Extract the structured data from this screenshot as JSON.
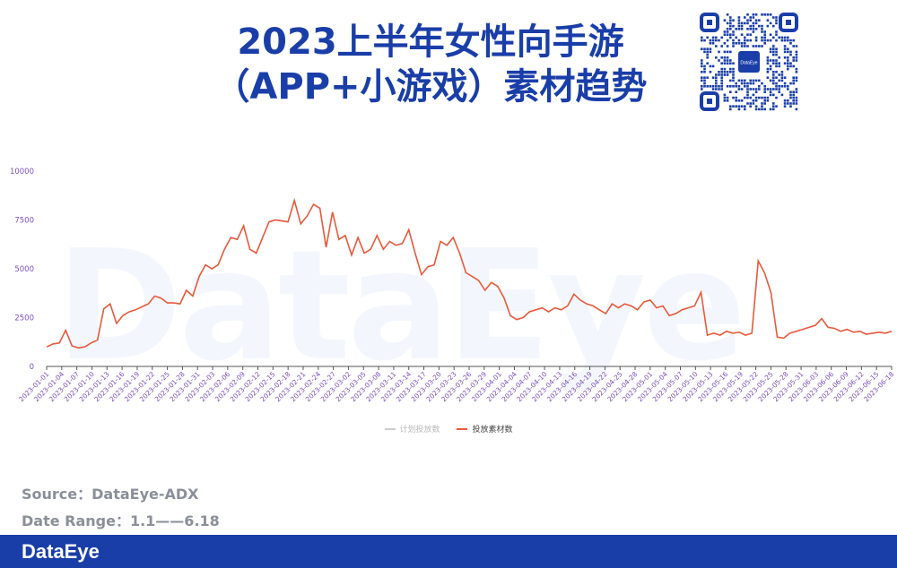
{
  "header": {
    "title_line1": "2023上半年女性向手游",
    "title_line2": "（APP+小游戏）素材趋势",
    "qr_badge": "DataEye"
  },
  "watermark": "DataEye",
  "source": {
    "source_line": "Source：DataEye-ADX",
    "date_range_line": "Date Range：1.1——6.18"
  },
  "footer": {
    "brand": "DataEye"
  },
  "colors": {
    "title": "#1a3ea8",
    "line": "#e8593c",
    "footer": "#1a3ea8",
    "axis_labels": "#7b4fbf"
  },
  "chart_data": {
    "type": "line",
    "ylim": [
      0,
      10000
    ],
    "yticks": [
      0,
      2500,
      5000,
      7500,
      10000
    ],
    "grid": false,
    "legend_position": "bottom",
    "x_tick_labels": [
      "2023-01-01",
      "2023-01-04",
      "2023-01-07",
      "2023-01-10",
      "2023-01-13",
      "2023-01-16",
      "2023-01-19",
      "2023-01-22",
      "2023-01-25",
      "2023-01-28",
      "2023-01-31",
      "2023-02-03",
      "2023-02-06",
      "2023-02-09",
      "2023-02-12",
      "2023-02-15",
      "2023-02-18",
      "2023-02-21",
      "2023-02-24",
      "2023-02-27",
      "2023-03-02",
      "2023-03-05",
      "2023-03-08",
      "2023-03-11",
      "2023-03-14",
      "2023-03-17",
      "2023-03-20",
      "2023-03-23",
      "2023-03-26",
      "2023-03-29",
      "2023-04-01",
      "2023-04-04",
      "2023-04-07",
      "2023-04-10",
      "2023-04-13",
      "2023-04-16",
      "2023-04-19",
      "2023-04-22",
      "2023-04-25",
      "2023-04-28",
      "2023-05-01",
      "2023-05-04",
      "2023-05-07",
      "2023-05-10",
      "2023-05-13",
      "2023-05-16",
      "2023-05-19",
      "2023-05-22",
      "2023-05-25",
      "2023-05-28",
      "2023-05-31",
      "2023-06-03",
      "2023-06-06",
      "2023-06-09",
      "2023-06-12",
      "2023-06-15",
      "2023-06-18"
    ],
    "series": [
      {
        "name": "计划投放数",
        "visible": false,
        "color": "#cccccc",
        "values": []
      },
      {
        "name": "投放素材数",
        "visible": true,
        "color": "#e8593c",
        "values": [
          1000,
          1150,
          1200,
          1850,
          1050,
          950,
          1000,
          1200,
          1350,
          2950,
          3200,
          2200,
          2600,
          2800,
          2900,
          3050,
          3200,
          3600,
          3500,
          3250,
          3250,
          3200,
          3900,
          3600,
          4600,
          5200,
          5000,
          5200,
          6000,
          6600,
          6500,
          7200,
          6000,
          5800,
          6600,
          7400,
          7500,
          7450,
          7400,
          8500,
          7300,
          7700,
          8300,
          8100,
          6100,
          7900,
          6500,
          6700,
          5700,
          6600,
          5800,
          6000,
          6700,
          6000,
          6400,
          6200,
          6300,
          7000,
          5800,
          4700,
          5100,
          5200,
          6400,
          6200,
          6600,
          5800,
          4800,
          4600,
          4400,
          3900,
          4300,
          4100,
          3500,
          2600,
          2400,
          2500,
          2800,
          2900,
          3000,
          2800,
          3000,
          2900,
          3100,
          3700,
          3400,
          3200,
          3100,
          2900,
          2700,
          3200,
          3000,
          3200,
          3100,
          2900,
          3300,
          3400,
          3000,
          3100,
          2600,
          2700,
          2900,
          3000,
          3100,
          3800,
          1600,
          1700,
          1600,
          1800,
          1700,
          1750,
          1600,
          1700,
          5400,
          4800,
          3800,
          1500,
          1450,
          1700,
          1800,
          1900,
          2000,
          2100,
          2450,
          2000,
          1950,
          1800,
          1900,
          1750,
          1800,
          1650,
          1700,
          1750,
          1700,
          1800
        ]
      }
    ]
  }
}
